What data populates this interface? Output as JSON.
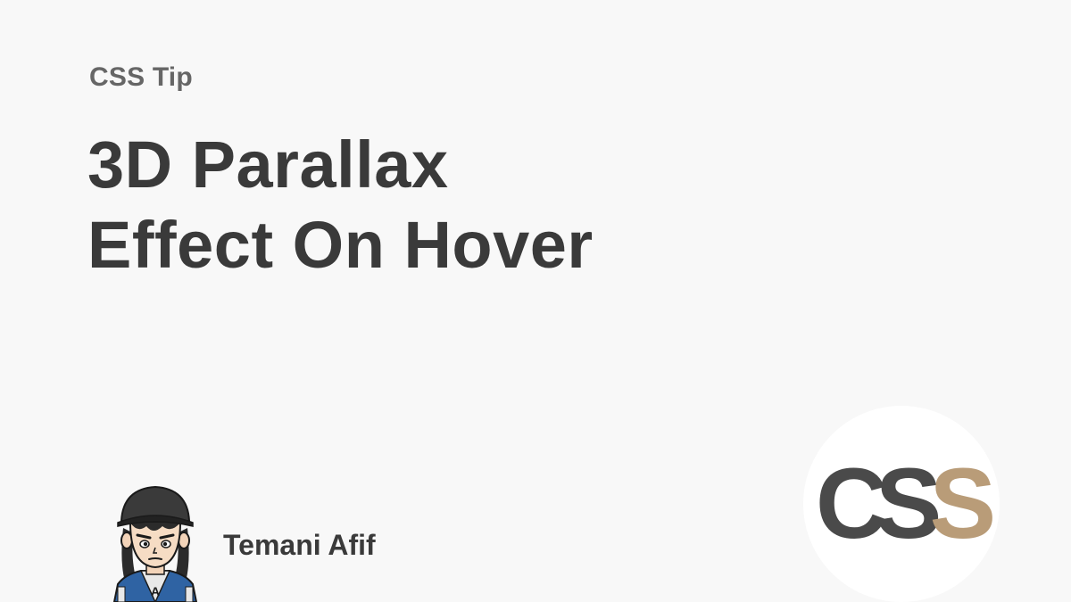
{
  "eyebrow": "CSS Tip",
  "title": {
    "line1": "3D Parallax",
    "line2": "Effect On Hover"
  },
  "author": {
    "name": "Temani Afif",
    "avatar_icon": "cartoon-avatar-icon",
    "avatar_jacket_letter": "A"
  },
  "logo": {
    "letters": [
      "C",
      "S",
      "S"
    ],
    "colors": {
      "dark": "#4a4a4a",
      "accent": "#b99c78"
    }
  },
  "colors": {
    "background": "#f8f8f8",
    "text": "#3a3a3a",
    "muted": "#666666"
  }
}
